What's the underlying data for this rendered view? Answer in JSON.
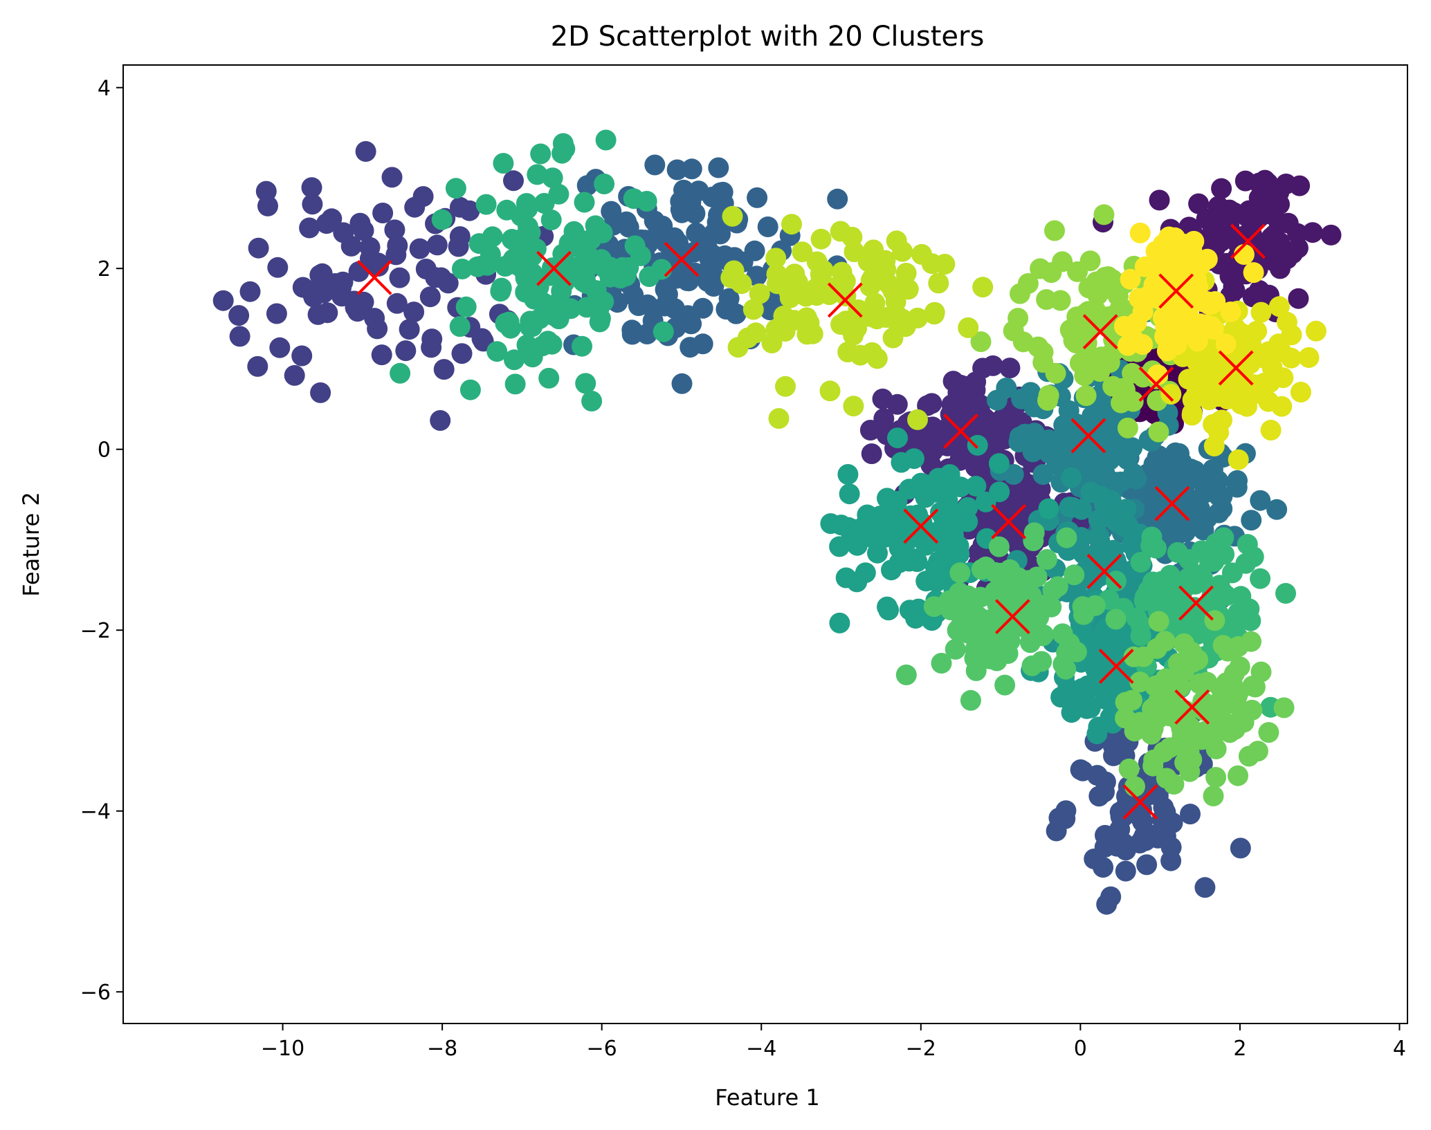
{
  "chart_data": {
    "type": "scatter",
    "title": "2D Scatterplot with 20 Clusters",
    "xlabel": "Feature 1",
    "ylabel": "Feature 2",
    "xlim": [
      -12.0,
      4.1
    ],
    "ylim": [
      -6.35,
      4.25
    ],
    "x_ticks": [
      -10,
      -8,
      -6,
      -4,
      -2,
      0,
      2,
      4
    ],
    "y_ticks": [
      -6,
      -4,
      -2,
      0,
      2,
      4
    ],
    "x_tick_labels": [
      "−10",
      "−8",
      "−6",
      "−4",
      "−2",
      "0",
      "2",
      "4"
    ],
    "y_tick_labels": [
      "−6",
      "−4",
      "−2",
      "0",
      "2",
      "4"
    ],
    "grid": false,
    "legend": "none",
    "colormap": "viridis",
    "point_marker": "filled circle",
    "centroid_marker": "x",
    "centroid_color": "#ff0000",
    "clusters": [
      {
        "color": "#440154",
        "centroid": [
          0.95,
          0.72
        ],
        "spread": [
          0.3,
          0.25
        ],
        "n": 90
      },
      {
        "color": "#48186a",
        "centroid": [
          2.1,
          2.3
        ],
        "spread": [
          0.45,
          0.45
        ],
        "n": 100
      },
      {
        "color": "#472d7b",
        "centroid": [
          -1.5,
          0.2
        ],
        "spread": [
          0.45,
          0.3
        ],
        "n": 110
      },
      {
        "color": "#424086",
        "centroid": [
          -8.85,
          1.9
        ],
        "spread": [
          0.9,
          0.55
        ],
        "n": 90
      },
      {
        "color": "#3b528b",
        "centroid": [
          0.75,
          -3.9
        ],
        "spread": [
          0.45,
          0.45
        ],
        "n": 90
      },
      {
        "color": "#33638d",
        "centroid": [
          -5.0,
          2.1
        ],
        "spread": [
          0.65,
          0.5
        ],
        "n": 130
      },
      {
        "color": "#2c728e",
        "centroid": [
          1.15,
          -0.6
        ],
        "spread": [
          0.45,
          0.35
        ],
        "n": 110
      },
      {
        "color": "#472d7b",
        "centroid": [
          -0.9,
          -0.8
        ],
        "spread": [
          0.4,
          0.3
        ],
        "n": 100
      },
      {
        "color": "#26828e",
        "centroid": [
          0.1,
          0.15
        ],
        "spread": [
          0.45,
          0.4
        ],
        "n": 110
      },
      {
        "color": "#21918c",
        "centroid": [
          0.3,
          -1.35
        ],
        "spread": [
          0.35,
          0.5
        ],
        "n": 110
      },
      {
        "color": "#1f9a8a",
        "centroid": [
          0.45,
          -2.4
        ],
        "spread": [
          0.4,
          0.35
        ],
        "n": 100
      },
      {
        "color": "#1fa088",
        "centroid": [
          -2.0,
          -0.85
        ],
        "spread": [
          0.5,
          0.45
        ],
        "n": 110
      },
      {
        "color": "#2ab07f",
        "centroid": [
          -6.6,
          2.0
        ],
        "spread": [
          0.6,
          0.55
        ],
        "n": 130
      },
      {
        "color": "#35b779",
        "centroid": [
          1.45,
          -1.7
        ],
        "spread": [
          0.45,
          0.4
        ],
        "n": 110
      },
      {
        "color": "#52c569",
        "centroid": [
          -0.85,
          -1.85
        ],
        "spread": [
          0.45,
          0.35
        ],
        "n": 110
      },
      {
        "color": "#6ece58",
        "centroid": [
          1.4,
          -2.85
        ],
        "spread": [
          0.45,
          0.4
        ],
        "n": 110
      },
      {
        "color": "#90d743",
        "centroid": [
          0.25,
          1.3
        ],
        "spread": [
          0.5,
          0.45
        ],
        "n": 100
      },
      {
        "color": "#bddf26",
        "centroid": [
          -2.95,
          1.65
        ],
        "spread": [
          0.7,
          0.5
        ],
        "n": 100
      },
      {
        "color": "#dfe318",
        "centroid": [
          1.95,
          0.9
        ],
        "spread": [
          0.35,
          0.35
        ],
        "n": 100
      },
      {
        "color": "#fde725",
        "centroid": [
          1.2,
          1.75
        ],
        "spread": [
          0.35,
          0.35
        ],
        "n": 100
      }
    ]
  }
}
